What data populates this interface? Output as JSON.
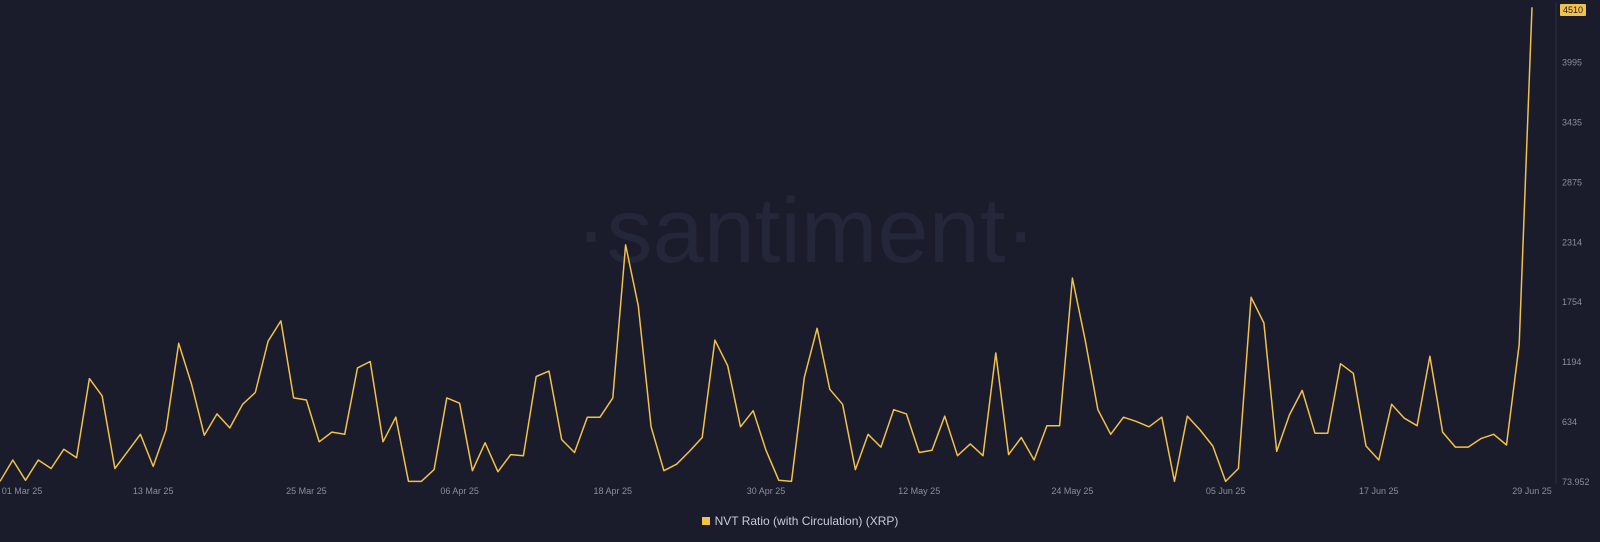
{
  "chart_data": {
    "type": "line",
    "watermark": "·santiment·",
    "x_tick_labels": [
      "01 Mar 25",
      "13 Mar 25",
      "25 Mar 25",
      "06 Apr 25",
      "18 Apr 25",
      "30 Apr 25",
      "12 May 25",
      "24 May 25",
      "05 Jun 25",
      "17 Jun 25",
      "29 Jun 25"
    ],
    "y_tick_labels": [
      "73.952",
      "634",
      "1194",
      "1754",
      "2314",
      "2875",
      "3435",
      "3995"
    ],
    "ylim": [
      73.952,
      4560
    ],
    "x_start": "2025-03-01",
    "x_end": "2025-06-29",
    "grid": false,
    "legend_position": "bottom-center",
    "max_label": "4510",
    "series": [
      {
        "name": "NVT Ratio (with Circulation) (XRP)",
        "color": "#f2c14a",
        "x": [
          "2025-03-01",
          "2025-03-02",
          "2025-03-03",
          "2025-03-04",
          "2025-03-05",
          "2025-03-06",
          "2025-03-07",
          "2025-03-08",
          "2025-03-09",
          "2025-03-10",
          "2025-03-11",
          "2025-03-12",
          "2025-03-13",
          "2025-03-14",
          "2025-03-15",
          "2025-03-16",
          "2025-03-17",
          "2025-03-18",
          "2025-03-19",
          "2025-03-20",
          "2025-03-21",
          "2025-03-22",
          "2025-03-23",
          "2025-03-24",
          "2025-03-25",
          "2025-03-26",
          "2025-03-27",
          "2025-03-28",
          "2025-03-29",
          "2025-03-30",
          "2025-03-31",
          "2025-04-01",
          "2025-04-02",
          "2025-04-03",
          "2025-04-04",
          "2025-04-05",
          "2025-04-06",
          "2025-04-07",
          "2025-04-08",
          "2025-04-09",
          "2025-04-10",
          "2025-04-11",
          "2025-04-12",
          "2025-04-13",
          "2025-04-14",
          "2025-04-15",
          "2025-04-16",
          "2025-04-17",
          "2025-04-18",
          "2025-04-19",
          "2025-04-20",
          "2025-04-21",
          "2025-04-22",
          "2025-04-23",
          "2025-04-24",
          "2025-04-25",
          "2025-04-26",
          "2025-04-27",
          "2025-04-28",
          "2025-04-29",
          "2025-04-30",
          "2025-05-01",
          "2025-05-02",
          "2025-05-03",
          "2025-05-04",
          "2025-05-05",
          "2025-05-06",
          "2025-05-07",
          "2025-05-08",
          "2025-05-09",
          "2025-05-10",
          "2025-05-11",
          "2025-05-12",
          "2025-05-13",
          "2025-05-14",
          "2025-05-15",
          "2025-05-16",
          "2025-05-17",
          "2025-05-18",
          "2025-05-19",
          "2025-05-20",
          "2025-05-21",
          "2025-05-22",
          "2025-05-23",
          "2025-05-24",
          "2025-05-25",
          "2025-05-26",
          "2025-05-27",
          "2025-05-28",
          "2025-05-29",
          "2025-05-30",
          "2025-05-31",
          "2025-06-01",
          "2025-06-02",
          "2025-06-03",
          "2025-06-04",
          "2025-06-05",
          "2025-06-06",
          "2025-06-07",
          "2025-06-08",
          "2025-06-09",
          "2025-06-10",
          "2025-06-11",
          "2025-06-12",
          "2025-06-13",
          "2025-06-14",
          "2025-06-15",
          "2025-06-16",
          "2025-06-17",
          "2025-06-18",
          "2025-06-19",
          "2025-06-20",
          "2025-06-21",
          "2025-06-22",
          "2025-06-23",
          "2025-06-24",
          "2025-06-25",
          "2025-06-26",
          "2025-06-27",
          "2025-06-28",
          "2025-06-29"
        ],
        "values": [
          80,
          280,
          90,
          280,
          200,
          380,
          300,
          1040,
          880,
          200,
          360,
          520,
          220,
          560,
          1370,
          990,
          510,
          710,
          580,
          800,
          910,
          1390,
          1580,
          860,
          840,
          450,
          540,
          520,
          1140,
          1200,
          450,
          680,
          80,
          80,
          190,
          860,
          810,
          180,
          440,
          170,
          330,
          320,
          1060,
          1110,
          470,
          350,
          680,
          680,
          860,
          2290,
          1720,
          590,
          180,
          240,
          360,
          490,
          1400,
          1160,
          590,
          740,
          370,
          90,
          80,
          1050,
          1510,
          940,
          800,
          190,
          520,
          400,
          750,
          710,
          350,
          370,
          690,
          320,
          430,
          320,
          1280,
          330,
          490,
          280,
          600,
          600,
          1980,
          1400,
          750,
          520,
          680,
          640,
          590,
          680,
          80,
          690,
          560,
          410,
          80,
          200,
          1800,
          1560,
          360,
          700,
          930,
          530,
          530,
          1180,
          1090,
          410,
          280,
          800,
          670,
          600,
          1250,
          540,
          400,
          400,
          480,
          520,
          420,
          1360,
          4510
        ]
      }
    ]
  }
}
